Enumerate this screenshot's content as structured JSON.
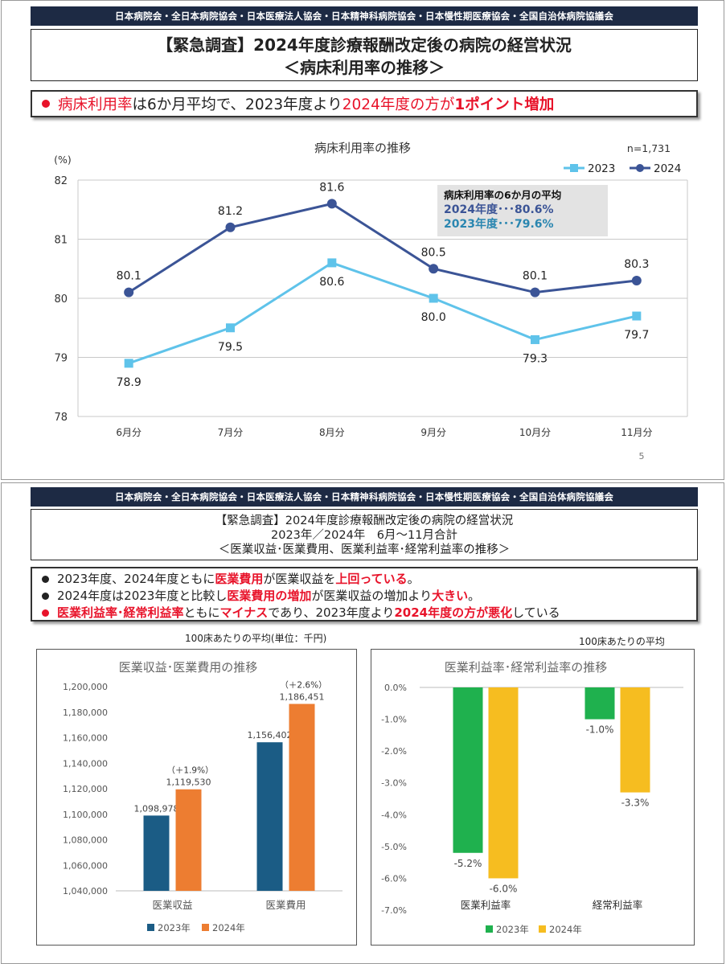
{
  "org_bar": "日本病院会・全日本病院協会・日本医療法人協会・日本精神科病院協会・日本慢性期医療協会・全国自治体病院協議会",
  "slide1": {
    "title": "【緊急調査】2024年度診療報酬改定後の病院の経営状況",
    "subtitle": "＜病床利用率の推移＞",
    "headline": {
      "p1": "病床利用率",
      "p2": "は6か月平均で、2023年度より",
      "p3": "2024年度の方が",
      "p4": "1ポイント増加"
    },
    "page_number": "5",
    "avg_box": {
      "title": "病床利用率の6か月の平均",
      "line2024": "2024年度･･･80.6%",
      "line2023": "2023年度･･･79.6%"
    },
    "colors": {
      "s2023": "#5fc3ea",
      "s2024": "#3b5496",
      "red": "#e8132a"
    }
  },
  "slide2": {
    "title_l1": "【緊急調査】2024年度診療報酬改定後の病院の経営状況",
    "title_l2": "2023年／2024年　6月～11月合計",
    "title_l3": "＜医業収益･医業費用、医業利益率･経常利益率の推移＞",
    "b1": {
      "a": "2023年度、2024年度ともに",
      "b": "医業費用",
      "c": "が医業収益を",
      "d": "上回っている",
      "e": "。"
    },
    "b2": {
      "a": "2024年度は2023年度と比較し",
      "b": "医業費用の増加",
      "c": "が医業収益の増加より",
      "d": "大きい",
      "e": "。"
    },
    "b3": {
      "a": "医業利益率･経常利益率",
      "b": "ともに",
      "c": "マイナス",
      "d": "であり、2023年度より",
      "e": "2024年度の方が悪化",
      "f": "している"
    },
    "left_caption": "100床あたりの平均(単位：千円)",
    "right_caption": "100床あたりの平均",
    "colors": {
      "c2023": "#1b5c85",
      "c2024": "#ed7d31",
      "g2023": "#1fb14e",
      "g2024": "#f6bd20"
    }
  },
  "chart_data": [
    {
      "type": "line",
      "title": "病床利用率の推移",
      "ylabel": "(%)",
      "note": "n=1,731",
      "categories": [
        "6月分",
        "7月分",
        "8月分",
        "9月分",
        "10月分",
        "11月分"
      ],
      "series": [
        {
          "name": "2023",
          "values": [
            78.9,
            79.5,
            80.6,
            80.0,
            79.3,
            79.7
          ]
        },
        {
          "name": "2024",
          "values": [
            80.1,
            81.2,
            81.6,
            80.5,
            80.1,
            80.3
          ]
        }
      ],
      "ylim": [
        78,
        82
      ],
      "yticks": [
        78,
        79,
        80,
        81,
        82
      ],
      "legend": "top-right",
      "grid": true
    },
    {
      "type": "bar",
      "title": "医業収益･医業費用の推移",
      "categories": [
        "医業収益",
        "医業費用"
      ],
      "series": [
        {
          "name": "2023年",
          "values": [
            1098978,
            1156402
          ]
        },
        {
          "name": "2024年",
          "values": [
            1119530,
            1186451
          ]
        }
      ],
      "value_labels": [
        [
          "1,098,978",
          "1,156,402"
        ],
        [
          "1,119,530",
          "1,186,451"
        ]
      ],
      "pct_annotations": [
        "（＋1.9%）",
        "（＋2.6%）"
      ],
      "ylim": [
        1040000,
        1200000
      ],
      "ytick_labels": [
        "1,040,000",
        "1,060,000",
        "1,080,000",
        "1,100,000",
        "1,120,000",
        "1,140,000",
        "1,160,000",
        "1,180,000",
        "1,200,000"
      ],
      "legend": "bottom"
    },
    {
      "type": "bar",
      "title": "医業利益率･経常利益率の推移",
      "categories": [
        "医業利益率",
        "経常利益率"
      ],
      "series": [
        {
          "name": "2023年",
          "values": [
            -5.2,
            -1.0
          ]
        },
        {
          "name": "2024年",
          "values": [
            -6.0,
            -3.3
          ]
        }
      ],
      "value_labels": [
        [
          "-5.2%",
          "-1.0%"
        ],
        [
          "-6.0%",
          "-3.3%"
        ]
      ],
      "ylim": [
        -7,
        0
      ],
      "ytick_labels": [
        "0.0%",
        "-1.0%",
        "-2.0%",
        "-3.0%",
        "-4.0%",
        "-5.0%",
        "-6.0%",
        "-7.0%"
      ],
      "legend": "bottom"
    }
  ]
}
